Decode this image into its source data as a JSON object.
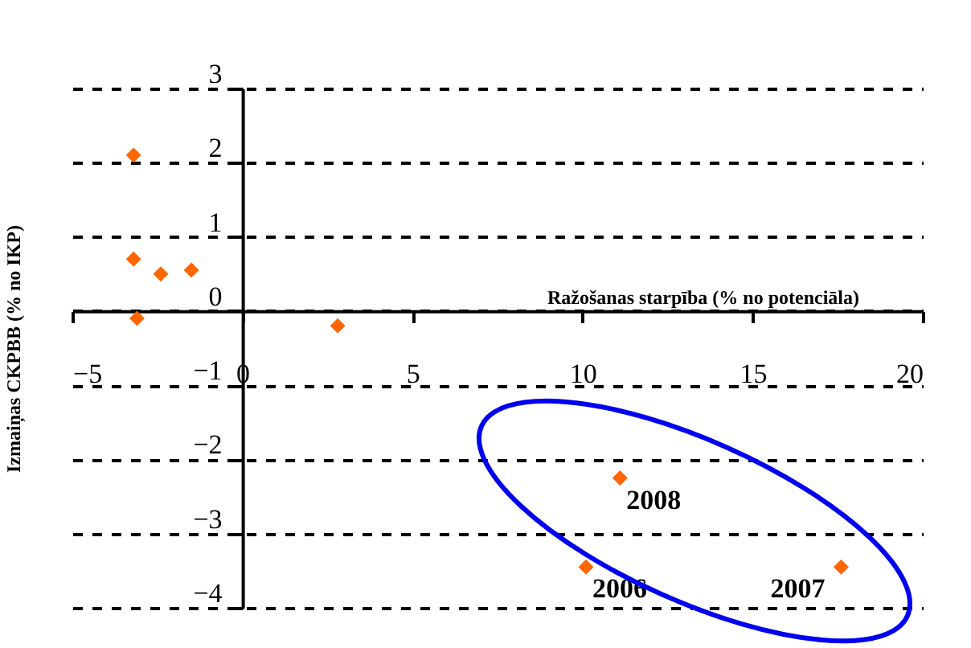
{
  "chart_data": {
    "type": "scatter",
    "xlabel": "Ražošanas starpība (% no potenciāla)",
    "ylabel": "Izmaiņas CKPBB (% no IKP)",
    "x": [
      -3.2,
      -3.2,
      -2.4,
      -1.5,
      -3.1,
      2.8,
      11.1,
      10.1,
      17.6
    ],
    "series": [
      {
        "color": "#ff6600",
        "values": [
          2.1,
          0.7,
          0.5,
          0.55,
          -0.1,
          -0.2,
          -2.25,
          -3.45,
          -3.45
        ]
      }
    ],
    "xlim": [
      -5,
      20
    ],
    "xticks": [
      -5,
      0,
      5,
      10,
      15,
      20
    ],
    "ylim": [
      -4,
      3
    ],
    "yticks": [
      -4,
      -3,
      -2,
      -1,
      0,
      1,
      2,
      3
    ],
    "grid": "y",
    "marker": "diamond",
    "annotations": [
      {
        "text": "2008",
        "x": 11.1,
        "y": -2.25
      },
      {
        "text": "2006",
        "x": 10.1,
        "y": -3.45
      },
      {
        "text": "2007",
        "x": 17.6,
        "y": -3.45
      }
    ]
  }
}
